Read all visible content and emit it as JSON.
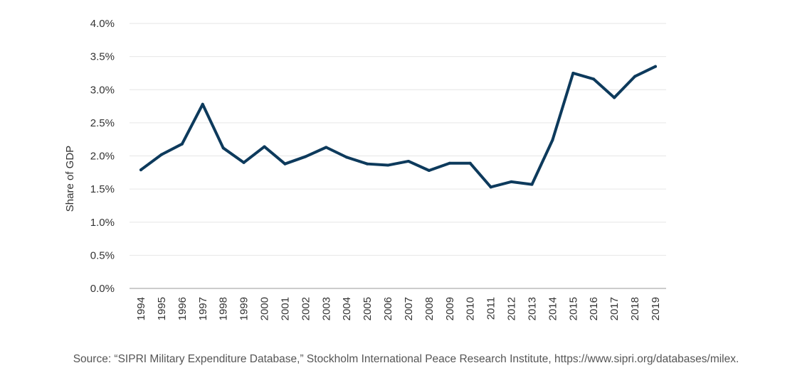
{
  "chart_data": {
    "type": "line",
    "title": "",
    "xlabel": "",
    "ylabel": "Share of GDP",
    "ylim": [
      0,
      4.0
    ],
    "yticks": [
      {
        "value": 0.0,
        "label": "0.0%"
      },
      {
        "value": 0.5,
        "label": "0.5%"
      },
      {
        "value": 1.0,
        "label": "1.0%"
      },
      {
        "value": 1.5,
        "label": "1.5%"
      },
      {
        "value": 2.0,
        "label": "2.0%"
      },
      {
        "value": 2.5,
        "label": "2.5%"
      },
      {
        "value": 3.0,
        "label": "3.0%"
      },
      {
        "value": 3.5,
        "label": "3.5%"
      },
      {
        "value": 4.0,
        "label": "4.0%"
      }
    ],
    "grid": true,
    "categories": [
      "1994",
      "1995",
      "1996",
      "1997",
      "1998",
      "1999",
      "2000",
      "2001",
      "2002",
      "2003",
      "2004",
      "2005",
      "2006",
      "2007",
      "2008",
      "2009",
      "2010",
      "2011",
      "2012",
      "2013",
      "2014",
      "2015",
      "2016",
      "2017",
      "2018",
      "2019"
    ],
    "series": [
      {
        "name": "Share of GDP",
        "color": "#0d3a5c",
        "values": [
          1.79,
          2.02,
          2.18,
          2.78,
          2.12,
          1.9,
          2.14,
          1.88,
          1.99,
          2.13,
          1.98,
          1.88,
          1.86,
          1.92,
          1.78,
          1.89,
          1.89,
          1.53,
          1.61,
          1.57,
          2.24,
          3.25,
          3.16,
          2.88,
          3.2,
          3.35
        ]
      }
    ]
  },
  "colors": {
    "line": "#0d3a5c",
    "grid": "#e6e6e6",
    "axis": "#999999",
    "text": "#333333",
    "source_text": "#555555"
  },
  "source": "Source: “SIPRI Military Expenditure Database,” Stockholm International Peace Research Institute, https://www.sipri.org/databases/milex."
}
